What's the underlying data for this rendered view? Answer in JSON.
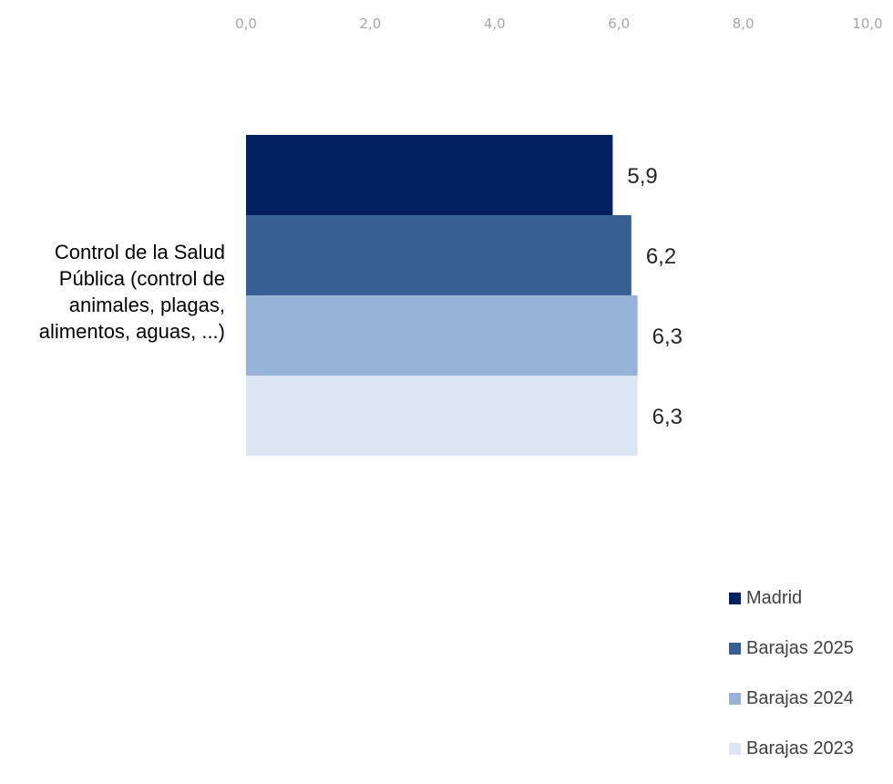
{
  "chart_data": {
    "type": "bar",
    "orientation": "horizontal",
    "categories": [
      "Control de la Salud Pública (control de animales, plagas, alimentos, aguas, ...)"
    ],
    "series": [
      {
        "name": "Madrid",
        "values": [
          5.9
        ],
        "label": "5,9",
        "color": "#002060"
      },
      {
        "name": "Barajas 2025",
        "values": [
          6.2
        ],
        "label": "6,2",
        "color": "#376092"
      },
      {
        "name": "Barajas 2024",
        "values": [
          6.3
        ],
        "label": "6,3",
        "color": "#95b3d7"
      },
      {
        "name": "Barajas 2023",
        "values": [
          6.3
        ],
        "label": "6,3",
        "color": "#dce6f2"
      }
    ],
    "xlim": [
      0,
      10
    ],
    "xticks": [
      "0,0",
      "2,0",
      "4,0",
      "6,0",
      "8,0",
      "10,0"
    ],
    "x_axis_position": "top",
    "grid": false,
    "legend": "bottom-right"
  }
}
